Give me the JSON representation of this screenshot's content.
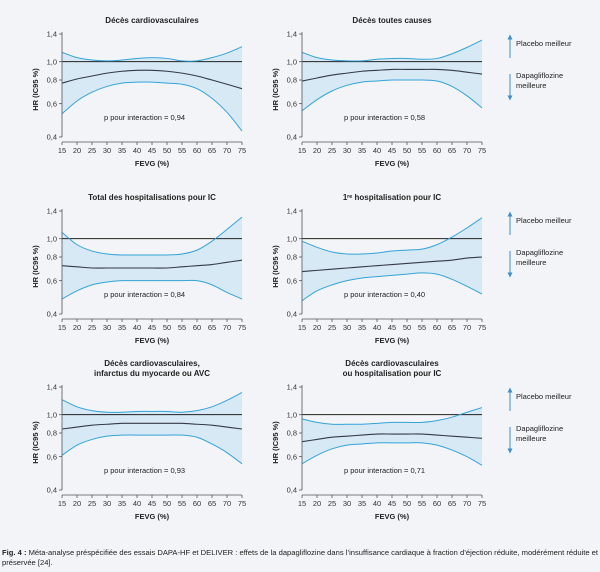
{
  "colors": {
    "band_fill": "#d6e9f5",
    "band_edge": "#35a3d6",
    "median_line": "#333a45",
    "reference_line": "#222222",
    "arrow": "#3d8fd0",
    "background": "#f2f4f7"
  },
  "legend": {
    "upper": "Placebo meilleur",
    "lower_line1": "Dapagliflozine",
    "lower_line2": "meilleure"
  },
  "caption": {
    "label": "Fig. 4 :",
    "text": "Méta-analyse préspécifiée des essais DAPA-HF et DELIVER : effets de la dapagliflozine dans l’insuffisance cardiaque à fraction d’éjection réduite, modérément réduite et préservée [24]."
  },
  "chart_data": [
    {
      "type": "line",
      "title": [
        "Décès cardiovasculaires"
      ],
      "xlabel": "FEVG (%)",
      "ylabel": "HR (IC95 %)",
      "xlim": [
        15,
        75
      ],
      "ylim": [
        0.4,
        1.4
      ],
      "x_ticks": [
        "15",
        "20",
        "25",
        "30",
        "35",
        "40",
        "45",
        "50",
        "55",
        "60",
        "65",
        "70",
        "75"
      ],
      "y_ticks": [
        "0,4",
        "0,6",
        "0,8",
        "1,0",
        "1,4"
      ],
      "reference_y": 1.0,
      "annotation": "p  pour interaction = 0,94",
      "x": [
        15,
        20,
        25,
        30,
        35,
        40,
        45,
        50,
        55,
        60,
        65,
        70,
        75
      ],
      "series": [
        {
          "role": "upper",
          "values": [
            1.12,
            1.05,
            1.02,
            1.01,
            1.02,
            1.04,
            1.05,
            1.04,
            1.01,
            1.01,
            1.05,
            1.11,
            1.2
          ]
        },
        {
          "role": "hr",
          "values": [
            0.77,
            0.81,
            0.84,
            0.87,
            0.89,
            0.9,
            0.9,
            0.89,
            0.87,
            0.84,
            0.8,
            0.76,
            0.72
          ]
        },
        {
          "role": "lower",
          "values": [
            0.53,
            0.62,
            0.69,
            0.74,
            0.77,
            0.78,
            0.78,
            0.77,
            0.76,
            0.72,
            0.64,
            0.54,
            0.43
          ]
        }
      ]
    },
    {
      "type": "line",
      "title": [
        "Décès toutes causes"
      ],
      "xlabel": "FEVG (%)",
      "ylabel": "HR (IC95 %)",
      "xlim": [
        15,
        75
      ],
      "ylim": [
        0.4,
        1.4
      ],
      "x_ticks": [
        "15",
        "20",
        "25",
        "30",
        "35",
        "40",
        "45",
        "50",
        "55",
        "60",
        "65",
        "70",
        "75"
      ],
      "y_ticks": [
        "0,4",
        "0,6",
        "0,8",
        "1,0",
        "1,4"
      ],
      "reference_y": 1.0,
      "annotation": "p  pour interaction = 0,58",
      "x": [
        15,
        20,
        25,
        30,
        35,
        40,
        45,
        50,
        55,
        60,
        65,
        70,
        75
      ],
      "series": [
        {
          "role": "upper",
          "values": [
            1.12,
            1.05,
            1.02,
            1.01,
            1.01,
            1.03,
            1.04,
            1.04,
            1.03,
            1.04,
            1.1,
            1.19,
            1.3
          ]
        },
        {
          "role": "hr",
          "values": [
            0.79,
            0.82,
            0.85,
            0.87,
            0.89,
            0.9,
            0.91,
            0.91,
            0.91,
            0.91,
            0.9,
            0.88,
            0.86
          ]
        },
        {
          "role": "lower",
          "values": [
            0.55,
            0.63,
            0.7,
            0.75,
            0.78,
            0.79,
            0.8,
            0.8,
            0.8,
            0.79,
            0.74,
            0.66,
            0.57
          ]
        }
      ]
    },
    {
      "type": "line",
      "title": [
        "Total des hospitalisations pour IC"
      ],
      "xlabel": "FEVG (%)",
      "ylabel": "HR (IC95 %)",
      "xlim": [
        15,
        75
      ],
      "ylim": [
        0.4,
        1.4
      ],
      "x_ticks": [
        "15",
        "20",
        "25",
        "30",
        "35",
        "40",
        "45",
        "50",
        "55",
        "60",
        "65",
        "70",
        "75"
      ],
      "y_ticks": [
        "0,4",
        "0,6",
        "0,8",
        "1,0",
        "1,4"
      ],
      "reference_y": 1.0,
      "annotation": "p  pour interaction = 0,84",
      "x": [
        15,
        20,
        25,
        30,
        35,
        40,
        45,
        50,
        55,
        60,
        65,
        70,
        75
      ],
      "series": [
        {
          "role": "upper",
          "values": [
            1.08,
            0.93,
            0.86,
            0.83,
            0.82,
            0.82,
            0.82,
            0.82,
            0.83,
            0.87,
            0.97,
            1.12,
            1.3
          ]
        },
        {
          "role": "hr",
          "values": [
            0.72,
            0.71,
            0.7,
            0.7,
            0.7,
            0.7,
            0.7,
            0.7,
            0.71,
            0.72,
            0.73,
            0.75,
            0.77
          ]
        },
        {
          "role": "lower",
          "values": [
            0.48,
            0.53,
            0.57,
            0.59,
            0.6,
            0.6,
            0.6,
            0.6,
            0.6,
            0.6,
            0.57,
            0.52,
            0.48
          ]
        }
      ]
    },
    {
      "type": "line",
      "title": [
        "1ʳᵉ hospitalisation pour IC"
      ],
      "xlabel": "FEVG (%)",
      "ylabel": "HR (IC95 %)",
      "xlim": [
        15,
        75
      ],
      "ylim": [
        0.4,
        1.4
      ],
      "x_ticks": [
        "15",
        "20",
        "25",
        "30",
        "35",
        "40",
        "45",
        "50",
        "55",
        "60",
        "65",
        "70",
        "75"
      ],
      "y_ticks": [
        "0,4",
        "0,6",
        "0,8",
        "1,0",
        "1,4"
      ],
      "reference_y": 1.0,
      "annotation": "p  pour interaction = 0,40",
      "x": [
        15,
        20,
        25,
        30,
        35,
        40,
        45,
        50,
        55,
        60,
        65,
        70,
        75
      ],
      "series": [
        {
          "role": "upper",
          "values": [
            0.97,
            0.9,
            0.85,
            0.83,
            0.83,
            0.84,
            0.86,
            0.87,
            0.88,
            0.93,
            1.02,
            1.14,
            1.29
          ]
        },
        {
          "role": "hr",
          "values": [
            0.67,
            0.68,
            0.69,
            0.7,
            0.71,
            0.72,
            0.73,
            0.74,
            0.75,
            0.76,
            0.77,
            0.79,
            0.8
          ]
        },
        {
          "role": "lower",
          "values": [
            0.47,
            0.53,
            0.57,
            0.6,
            0.62,
            0.63,
            0.64,
            0.65,
            0.66,
            0.65,
            0.61,
            0.56,
            0.51
          ]
        }
      ]
    },
    {
      "type": "line",
      "title": [
        "Décès cardiovasculaires,",
        "infarctus du myocarde ou AVC"
      ],
      "xlabel": "FEVG (%)",
      "ylabel": "HR (IC95 %)",
      "xlim": [
        15,
        75
      ],
      "ylim": [
        0.4,
        1.4
      ],
      "x_ticks": [
        "15",
        "20",
        "25",
        "30",
        "35",
        "40",
        "45",
        "50",
        "55",
        "60",
        "65",
        "70",
        "75"
      ],
      "y_ticks": [
        "0,4",
        "0,6",
        "0,8",
        "1,0",
        "1,4"
      ],
      "reference_y": 1.0,
      "annotation": "p  pour interaction = 0,93",
      "x": [
        15,
        20,
        25,
        30,
        35,
        40,
        45,
        50,
        55,
        60,
        65,
        70,
        75
      ],
      "series": [
        {
          "role": "upper",
          "values": [
            1.2,
            1.1,
            1.05,
            1.03,
            1.03,
            1.04,
            1.04,
            1.04,
            1.03,
            1.05,
            1.1,
            1.19,
            1.31
          ]
        },
        {
          "role": "hr",
          "values": [
            0.84,
            0.86,
            0.88,
            0.89,
            0.9,
            0.9,
            0.9,
            0.9,
            0.9,
            0.89,
            0.88,
            0.86,
            0.84
          ]
        },
        {
          "role": "lower",
          "values": [
            0.61,
            0.69,
            0.74,
            0.77,
            0.78,
            0.78,
            0.78,
            0.78,
            0.78,
            0.76,
            0.7,
            0.63,
            0.55
          ]
        }
      ]
    },
    {
      "type": "line",
      "title": [
        "Décès cardiovasculaires",
        "ou hospitalisation pour IC"
      ],
      "xlabel": "FEVG (%)",
      "ylabel": "HR (IC95 %)",
      "xlim": [
        15,
        75
      ],
      "ylim": [
        0.4,
        1.4
      ],
      "x_ticks": [
        "15",
        "20",
        "25",
        "30",
        "35",
        "40",
        "45",
        "50",
        "55",
        "60",
        "65",
        "70",
        "75"
      ],
      "y_ticks": [
        "0,4",
        "0,6",
        "0,8",
        "1,0",
        "1,4"
      ],
      "reference_y": 1.0,
      "annotation": "p  pour interaction = 0,71",
      "x": [
        15,
        20,
        25,
        30,
        35,
        40,
        45,
        50,
        55,
        60,
        65,
        70,
        75
      ],
      "series": [
        {
          "role": "upper",
          "values": [
            0.95,
            0.91,
            0.89,
            0.89,
            0.89,
            0.9,
            0.91,
            0.91,
            0.91,
            0.93,
            0.97,
            1.03,
            1.09
          ]
        },
        {
          "role": "hr",
          "values": [
            0.72,
            0.74,
            0.76,
            0.77,
            0.78,
            0.79,
            0.79,
            0.79,
            0.79,
            0.78,
            0.77,
            0.76,
            0.75
          ]
        },
        {
          "role": "lower",
          "values": [
            0.55,
            0.61,
            0.66,
            0.69,
            0.7,
            0.71,
            0.71,
            0.71,
            0.71,
            0.69,
            0.65,
            0.6,
            0.54
          ]
        }
      ]
    }
  ]
}
